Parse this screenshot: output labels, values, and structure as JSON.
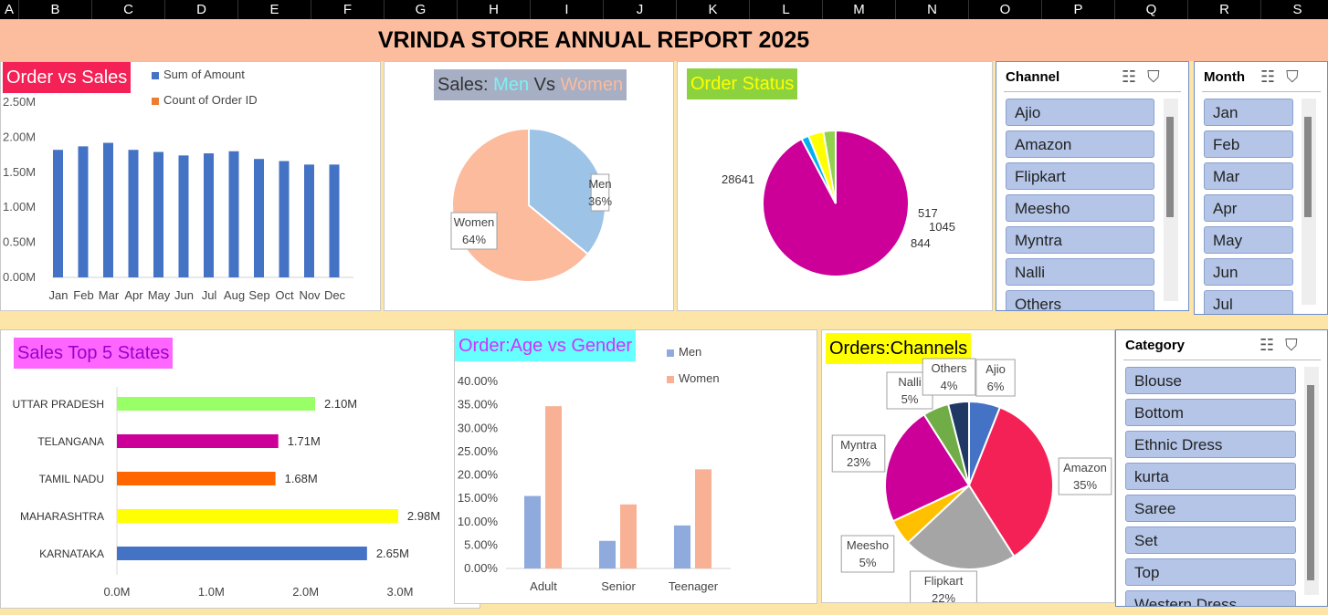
{
  "columns": [
    "A",
    "B",
    "C",
    "D",
    "E",
    "F",
    "G",
    "H",
    "I",
    "J",
    "K",
    "L",
    "M",
    "N",
    "O",
    "P",
    "Q",
    "R",
    "S"
  ],
  "report_title": "VRINDA STORE ANNUAL REPORT 2025",
  "order_vs_sales": {
    "title": "Order vs Sales",
    "legend": [
      "Sum of Amount",
      "Count of Order ID"
    ],
    "legend_colors": [
      "#4472c4",
      "#ed7d31"
    ],
    "chart_data": {
      "type": "bar",
      "categories": [
        "Jan",
        "Feb",
        "Mar",
        "Apr",
        "May",
        "Jun",
        "Jul",
        "Aug",
        "Sep",
        "Oct",
        "Nov",
        "Dec"
      ],
      "series": [
        {
          "name": "Sum of Amount",
          "values": [
            1.82,
            1.87,
            1.92,
            1.82,
            1.79,
            1.74,
            1.77,
            1.8,
            1.69,
            1.66,
            1.61,
            1.61
          ]
        }
      ],
      "ylim": [
        0,
        2.5
      ],
      "yticks": [
        "0.00M",
        "0.50M",
        "1.00M",
        "1.50M",
        "2.00M",
        "2.50M"
      ],
      "grid": false
    }
  },
  "sales_men_women": {
    "title_prefix": "Sales: ",
    "title_men": "Men",
    "title_vs": " Vs ",
    "title_women": "Women",
    "chart_data": {
      "type": "pie",
      "labels": [
        "Men",
        "Women"
      ],
      "values": [
        36,
        64
      ],
      "data_labels": [
        "36%",
        "64%"
      ],
      "colors": [
        "#9dc3e6",
        "#fbbb9c"
      ]
    }
  },
  "order_status": {
    "title": "Order  Status",
    "chart_data": {
      "type": "pie",
      "values": [
        28641,
        517,
        1045,
        844
      ],
      "data_labels": [
        "28641",
        "517",
        "1045",
        "844"
      ],
      "colors": [
        "#cc0099",
        "#00b0f0",
        "#ffff00",
        "#92d050"
      ]
    }
  },
  "channel_slicer": {
    "header": "Channel",
    "items": [
      "Ajio",
      "Amazon",
      "Flipkart",
      "Meesho",
      "Myntra",
      "Nalli",
      "Others"
    ]
  },
  "month_slicer": {
    "header": "Month",
    "items": [
      "Jan",
      "Feb",
      "Mar",
      "Apr",
      "May",
      "Jun",
      "Jul"
    ]
  },
  "top_states": {
    "title": "Sales Top 5 States",
    "chart_data": {
      "type": "bar",
      "orientation": "horizontal",
      "categories": [
        "UTTAR PRADESH",
        "TELANGANA",
        "TAMIL NADU",
        "MAHARASHTRA",
        "KARNATAKA"
      ],
      "values": [
        2.1,
        1.71,
        1.68,
        2.98,
        2.65
      ],
      "data_labels": [
        "2.10M",
        "1.71M",
        "1.68M",
        "2.98M",
        "2.65M"
      ],
      "colors": [
        "#99ff66",
        "#cc0099",
        "#ff6600",
        "#ffff00",
        "#4472c4"
      ],
      "xlim": [
        0,
        3
      ],
      "xticks": [
        "0.0M",
        "1.0M",
        "2.0M",
        "3.0M"
      ]
    }
  },
  "age_gender": {
    "title": "Order:Age vs Gender",
    "legend": [
      "Men",
      "Women"
    ],
    "legend_colors": [
      "#8faadc",
      "#f8b195"
    ],
    "chart_data": {
      "type": "bar",
      "categories": [
        "Adult",
        "Senior",
        "Teenager"
      ],
      "series": [
        {
          "name": "Men",
          "values": [
            15.5,
            5.9,
            9.2
          ]
        },
        {
          "name": "Women",
          "values": [
            34.7,
            13.7,
            21.2
          ]
        }
      ],
      "ylim": [
        0,
        40
      ],
      "yticks": [
        "0.00%",
        "5.00%",
        "10.00%",
        "15.00%",
        "20.00%",
        "25.00%",
        "30.00%",
        "35.00%",
        "40.00%"
      ]
    }
  },
  "orders_channels": {
    "title": "Orders:Channels",
    "chart_data": {
      "type": "pie",
      "labels": [
        "Ajio",
        "Amazon",
        "Flipkart",
        "Meesho",
        "Myntra",
        "Nalli",
        "Others"
      ],
      "values": [
        6,
        35,
        22,
        5,
        23,
        5,
        4
      ],
      "data_labels": [
        "6%",
        "35%",
        "22%",
        "5%",
        "23%",
        "5%",
        "4%"
      ],
      "colors": [
        "#4472c4",
        "#f42156",
        "#a5a5a5",
        "#ffc000",
        "#cc0099",
        "#70ad47",
        "#1f3864"
      ]
    }
  },
  "category_slicer": {
    "header": "Category",
    "items": [
      "Blouse",
      "Bottom",
      "Ethnic Dress",
      "kurta",
      "Saree",
      "Set",
      "Top",
      "Western Dress"
    ]
  }
}
